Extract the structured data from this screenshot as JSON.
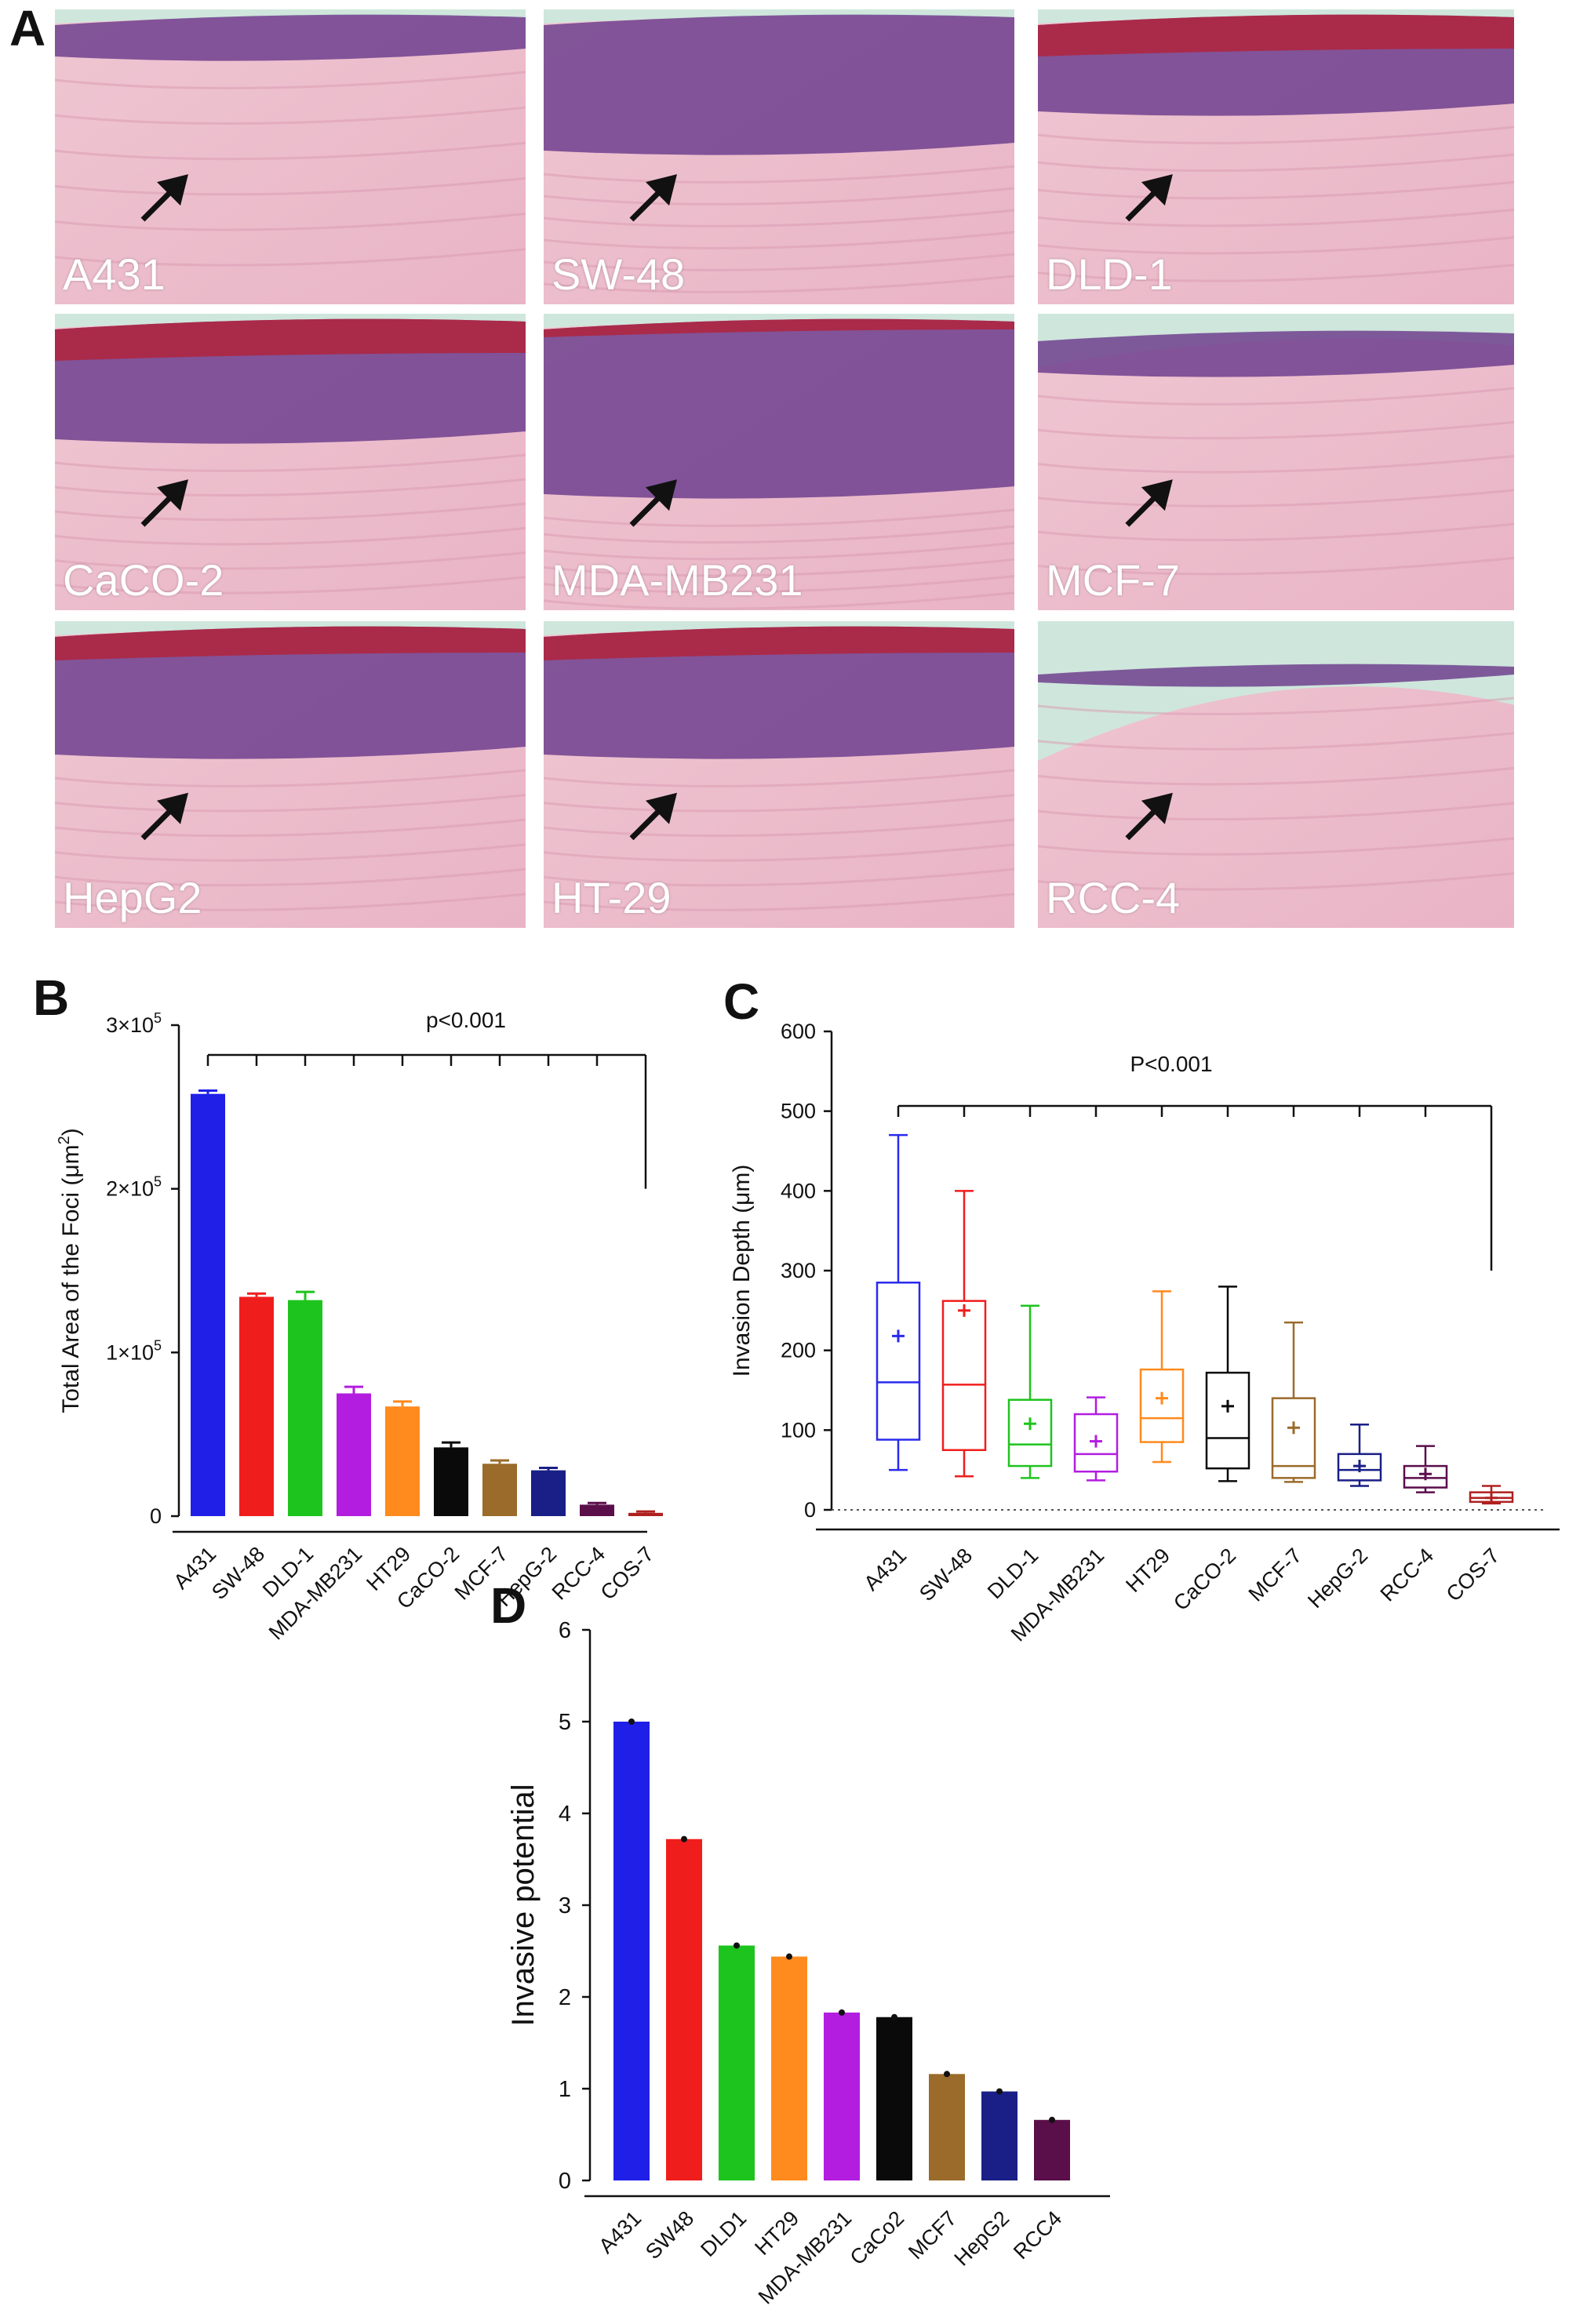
{
  "panel_letters": {
    "a": "A",
    "b": "B",
    "c": "C",
    "d": "D"
  },
  "micrographs": [
    {
      "label": "A431"
    },
    {
      "label": "SW-48"
    },
    {
      "label": "DLD-1"
    },
    {
      "label": "CaCO-2"
    },
    {
      "label": "MDA-MB231"
    },
    {
      "label": "MCF-7"
    },
    {
      "label": "HepG2"
    },
    {
      "label": "HT-29"
    },
    {
      "label": "RCC-4"
    }
  ],
  "chart_data": [
    {
      "panel": "B",
      "type": "bar",
      "ylabel_main": "Total Area of the Foci (μm",
      "ylabel_sup": "2",
      "ylabel_end": ")",
      "annotation": "p<0.001",
      "ylim": [
        0,
        300000
      ],
      "y_ticks": [
        {
          "value": 0,
          "base": "0",
          "exp": ""
        },
        {
          "value": 100000,
          "base": "1×10",
          "exp": "5"
        },
        {
          "value": 200000,
          "base": "2×10",
          "exp": "5"
        },
        {
          "value": 300000,
          "base": "3×10",
          "exp": "5"
        }
      ],
      "categories": [
        "A431",
        "SW-48",
        "DLD-1",
        "MDA-MB231",
        "HT29",
        "CaCO-2",
        "MCF-7",
        "HepG-2",
        "RCC-4",
        "COS-7"
      ],
      "values": [
        258000,
        134000,
        132000,
        75000,
        67000,
        42000,
        32000,
        28000,
        7000,
        2000
      ],
      "errors": [
        2000,
        2000,
        5000,
        4000,
        3000,
        3000,
        2000,
        1500,
        1000,
        800
      ],
      "colors": [
        "#1f1fe8",
        "#f01d1d",
        "#1dc41d",
        "#b31de0",
        "#ff8a1d",
        "#0a0a0a",
        "#9a6b2a",
        "#191f86",
        "#5a0e4a",
        "#b02020"
      ]
    },
    {
      "panel": "C",
      "type": "box",
      "ylabel": "Invasion Depth (μm)",
      "annotation": "P<0.001",
      "ylim": [
        0,
        600
      ],
      "y_ticks": [
        0,
        100,
        200,
        300,
        400,
        500,
        600
      ],
      "categories": [
        "A431",
        "SW-48",
        "DLD-1",
        "MDA-MB231",
        "HT29",
        "CaCO-2",
        "MCF-7",
        "HepG-2",
        "RCC-4",
        "COS-7"
      ],
      "boxes": [
        {
          "min": 50,
          "q1": 88,
          "median": 160,
          "q3": 285,
          "max": 470,
          "mean": 218
        },
        {
          "min": 42,
          "q1": 75,
          "median": 157,
          "q3": 262,
          "max": 400,
          "mean": 250
        },
        {
          "min": 40,
          "q1": 55,
          "median": 82,
          "q3": 138,
          "max": 256,
          "mean": 108
        },
        {
          "min": 37,
          "q1": 48,
          "median": 70,
          "q3": 120,
          "max": 141,
          "mean": 86
        },
        {
          "min": 60,
          "q1": 85,
          "median": 115,
          "q3": 176,
          "max": 274,
          "mean": 140
        },
        {
          "min": 36,
          "q1": 52,
          "median": 90,
          "q3": 172,
          "max": 280,
          "mean": 130
        },
        {
          "min": 35,
          "q1": 40,
          "median": 55,
          "q3": 140,
          "max": 235,
          "mean": 103
        },
        {
          "min": 30,
          "q1": 37,
          "median": 50,
          "q3": 70,
          "max": 107,
          "mean": 55
        },
        {
          "min": 22,
          "q1": 28,
          "median": 40,
          "q3": 55,
          "max": 80,
          "mean": 45
        },
        {
          "min": 8,
          "q1": 10,
          "median": 15,
          "q3": 22,
          "max": 30,
          "mean": 15
        }
      ],
      "colors": [
        "#2a2af0",
        "#f01d1d",
        "#1dc41d",
        "#b31de0",
        "#ff8a1d",
        "#0a0a0a",
        "#9a6b2a",
        "#191f86",
        "#5a0e4a",
        "#b02020"
      ]
    },
    {
      "panel": "D",
      "type": "bar",
      "ylabel": "Invasive potential",
      "ylim": [
        0,
        6
      ],
      "y_ticks": [
        0,
        1,
        2,
        3,
        4,
        5,
        6
      ],
      "categories": [
        "A431",
        "SW48",
        "DLD1",
        "HT29",
        "MDA-MB231",
        "CaCo2",
        "MCF7",
        "HepG2",
        "RCC4"
      ],
      "values": [
        5.0,
        3.72,
        2.56,
        2.44,
        1.83,
        1.78,
        1.16,
        0.97,
        0.66
      ],
      "colors": [
        "#1f1fe8",
        "#f01d1d",
        "#1dc41d",
        "#ff8a1d",
        "#b31de0",
        "#0a0a0a",
        "#9a6b2a",
        "#191f86",
        "#5a0e4a"
      ]
    }
  ]
}
